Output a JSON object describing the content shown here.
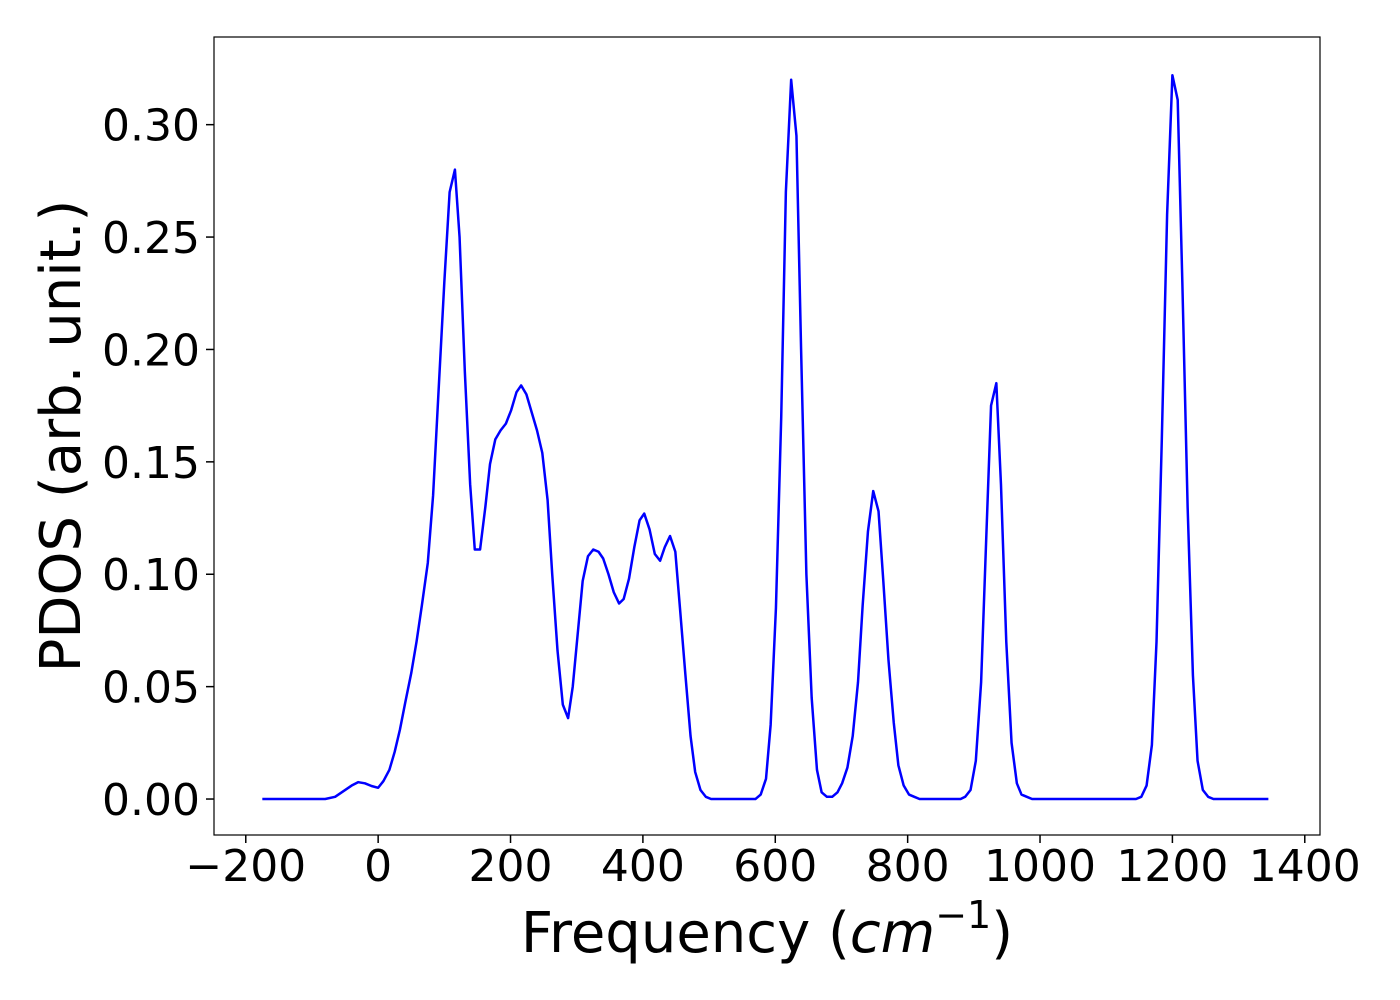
{
  "chart_data": {
    "type": "line",
    "ylabel": "PDOS (arb. unit.)",
    "xlabel": [
      "Frequency (",
      "cm",
      "−1",
      ")"
    ],
    "xlim": [
      -248,
      1423
    ],
    "ylim": [
      -0.016,
      0.339
    ],
    "xticks": [
      {
        "value": -200,
        "label": "−200"
      },
      0,
      200,
      400,
      600,
      800,
      1000,
      1200,
      1400
    ],
    "yticks": [
      {
        "value": 0,
        "label": "0.00"
      },
      0.05,
      {
        "value": 0.1,
        "label": "0.10"
      },
      0.15,
      {
        "value": 0.2,
        "label": "0.20"
      },
      0.25,
      {
        "value": 0.3,
        "label": "0.30"
      }
    ],
    "color": "#0000ff",
    "x": [
      -175,
      -80,
      -65,
      -50,
      -40,
      -30,
      -20,
      -10,
      0,
      8,
      17,
      25,
      33,
      41,
      50,
      58,
      66,
      75,
      83,
      91,
      100,
      108,
      116,
      123,
      131,
      139,
      146,
      154,
      162,
      169,
      177,
      185,
      193,
      201,
      209,
      216,
      224,
      232,
      240,
      248,
      256,
      263,
      271,
      279,
      287,
      294,
      302,
      309,
      317,
      325,
      333,
      340,
      348,
      356,
      364,
      371,
      379,
      387,
      395,
      402,
      410,
      418,
      426,
      433,
      441,
      449,
      456,
      464,
      472,
      479,
      487,
      495,
      503,
      570,
      578,
      586,
      593,
      601,
      609,
      616,
      624,
      632,
      639,
      647,
      655,
      663,
      670,
      678,
      686,
      694,
      701,
      709,
      717,
      725,
      732,
      740,
      748,
      756,
      763,
      771,
      779,
      786,
      794,
      802,
      810,
      818,
      880,
      887,
      895,
      903,
      911,
      918,
      926,
      934,
      941,
      949,
      957,
      965,
      972,
      980,
      988,
      1145,
      1153,
      1161,
      1169,
      1176,
      1184,
      1192,
      1200,
      1208,
      1215,
      1223,
      1231,
      1238,
      1246,
      1254,
      1262,
      1345
    ],
    "values": [
      0,
      0,
      0.001,
      0.004,
      0.006,
      0.0075,
      0.007,
      0.0058,
      0.005,
      0.008,
      0.013,
      0.021,
      0.031,
      0.043,
      0.056,
      0.07,
      0.086,
      0.105,
      0.135,
      0.18,
      0.23,
      0.27,
      0.28,
      0.25,
      0.19,
      0.14,
      0.111,
      0.111,
      0.13,
      0.149,
      0.16,
      0.164,
      0.167,
      0.173,
      0.181,
      0.184,
      0.18,
      0.172,
      0.164,
      0.154,
      0.133,
      0.1,
      0.066,
      0.042,
      0.036,
      0.05,
      0.075,
      0.097,
      0.108,
      0.111,
      0.11,
      0.107,
      0.1,
      0.092,
      0.087,
      0.089,
      0.098,
      0.112,
      0.124,
      0.127,
      0.12,
      0.109,
      0.106,
      0.112,
      0.117,
      0.11,
      0.085,
      0.056,
      0.028,
      0.012,
      0.004,
      0.001,
      0,
      0,
      0.002,
      0.009,
      0.033,
      0.085,
      0.17,
      0.27,
      0.32,
      0.295,
      0.2,
      0.1,
      0.045,
      0.013,
      0.003,
      0.001,
      0.001,
      0.003,
      0.007,
      0.014,
      0.028,
      0.052,
      0.086,
      0.119,
      0.137,
      0.128,
      0.098,
      0.062,
      0.034,
      0.015,
      0.006,
      0.002,
      0.001,
      0,
      0,
      0.001,
      0.004,
      0.017,
      0.052,
      0.11,
      0.175,
      0.185,
      0.14,
      0.07,
      0.025,
      0.007,
      0.002,
      0.001,
      0,
      0,
      0.001,
      0.006,
      0.024,
      0.07,
      0.16,
      0.26,
      0.322,
      0.311,
      0.23,
      0.13,
      0.055,
      0.017,
      0.004,
      0.001,
      0,
      0
    ]
  }
}
